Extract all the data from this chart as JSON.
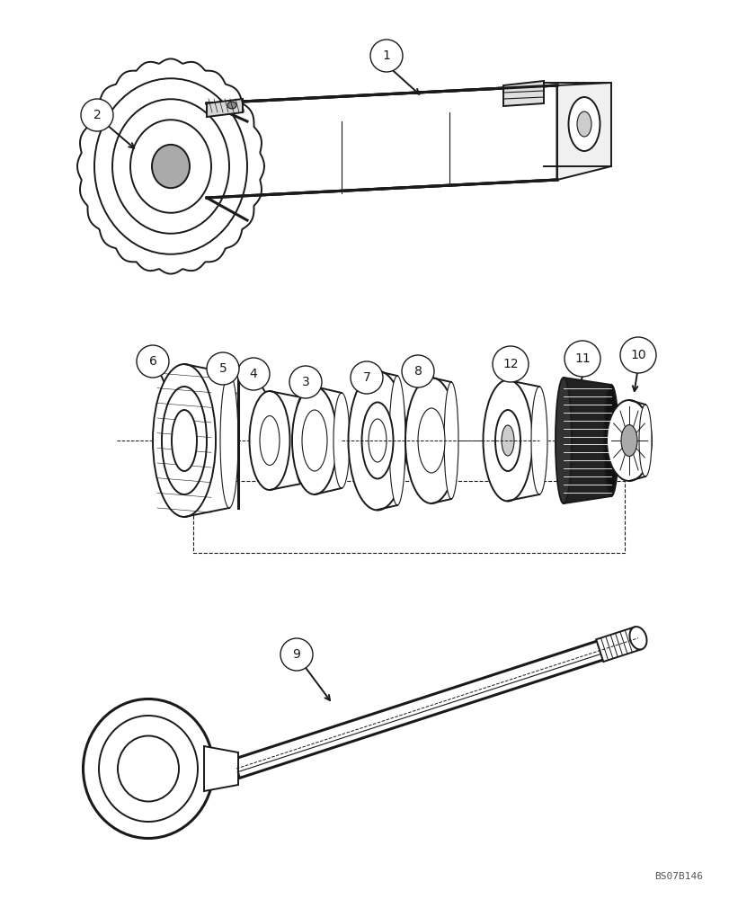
{
  "background_color": "#ffffff",
  "watermark": "BS07B146",
  "line_color": "#1a1a1a",
  "lw_heavy": 2.2,
  "lw_medium": 1.4,
  "lw_light": 0.8,
  "callout_r": 0.022,
  "callout_fontsize": 10
}
